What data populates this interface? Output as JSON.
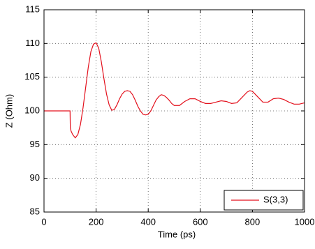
{
  "chart_data": {
    "type": "line",
    "xlabel": "Time (ps)",
    "ylabel": "Z (Ohm)",
    "x": [
      0,
      100,
      101,
      104,
      110,
      120,
      130,
      140,
      150,
      160,
      170,
      180,
      190,
      200,
      210,
      220,
      230,
      240,
      250,
      260,
      270,
      280,
      290,
      300,
      310,
      320,
      330,
      340,
      350,
      360,
      370,
      380,
      390,
      400,
      410,
      420,
      430,
      440,
      450,
      460,
      470,
      480,
      490,
      500,
      520,
      540,
      560,
      580,
      600,
      620,
      640,
      660,
      680,
      700,
      720,
      740,
      760,
      780,
      790,
      800,
      820,
      840,
      860,
      880,
      900,
      920,
      940,
      960,
      980,
      1000
    ],
    "series": [
      {
        "name": "S(3,3)",
        "color": "#e3101c",
        "values": [
          100,
          100,
          97.5,
          97,
          96.5,
          96,
          96.5,
          98,
          100.5,
          103.5,
          106.5,
          108.8,
          109.9,
          110.1,
          109.3,
          107.3,
          104.8,
          102.5,
          100.9,
          100.1,
          100.2,
          100.9,
          101.8,
          102.5,
          102.9,
          103,
          102.9,
          102.4,
          101.6,
          100.7,
          100,
          99.5,
          99.4,
          99.5,
          100,
          100.8,
          101.6,
          102.1,
          102.4,
          102.3,
          102,
          101.6,
          101.1,
          100.8,
          100.8,
          101.4,
          101.8,
          101.8,
          101.4,
          101.1,
          101.1,
          101.3,
          101.5,
          101.4,
          101.1,
          101.2,
          102,
          102.8,
          103,
          102.9,
          102.1,
          101.3,
          101.3,
          101.8,
          101.9,
          101.7,
          101.3,
          101,
          101,
          101.2
        ]
      }
    ],
    "xlim": [
      0,
      1000
    ],
    "xticks": [
      0,
      200,
      400,
      600,
      800,
      1000
    ],
    "ylim": [
      85,
      115
    ],
    "yticks": [
      85,
      90,
      95,
      100,
      105,
      110,
      115
    ],
    "grid": true,
    "legend": "lower right"
  }
}
